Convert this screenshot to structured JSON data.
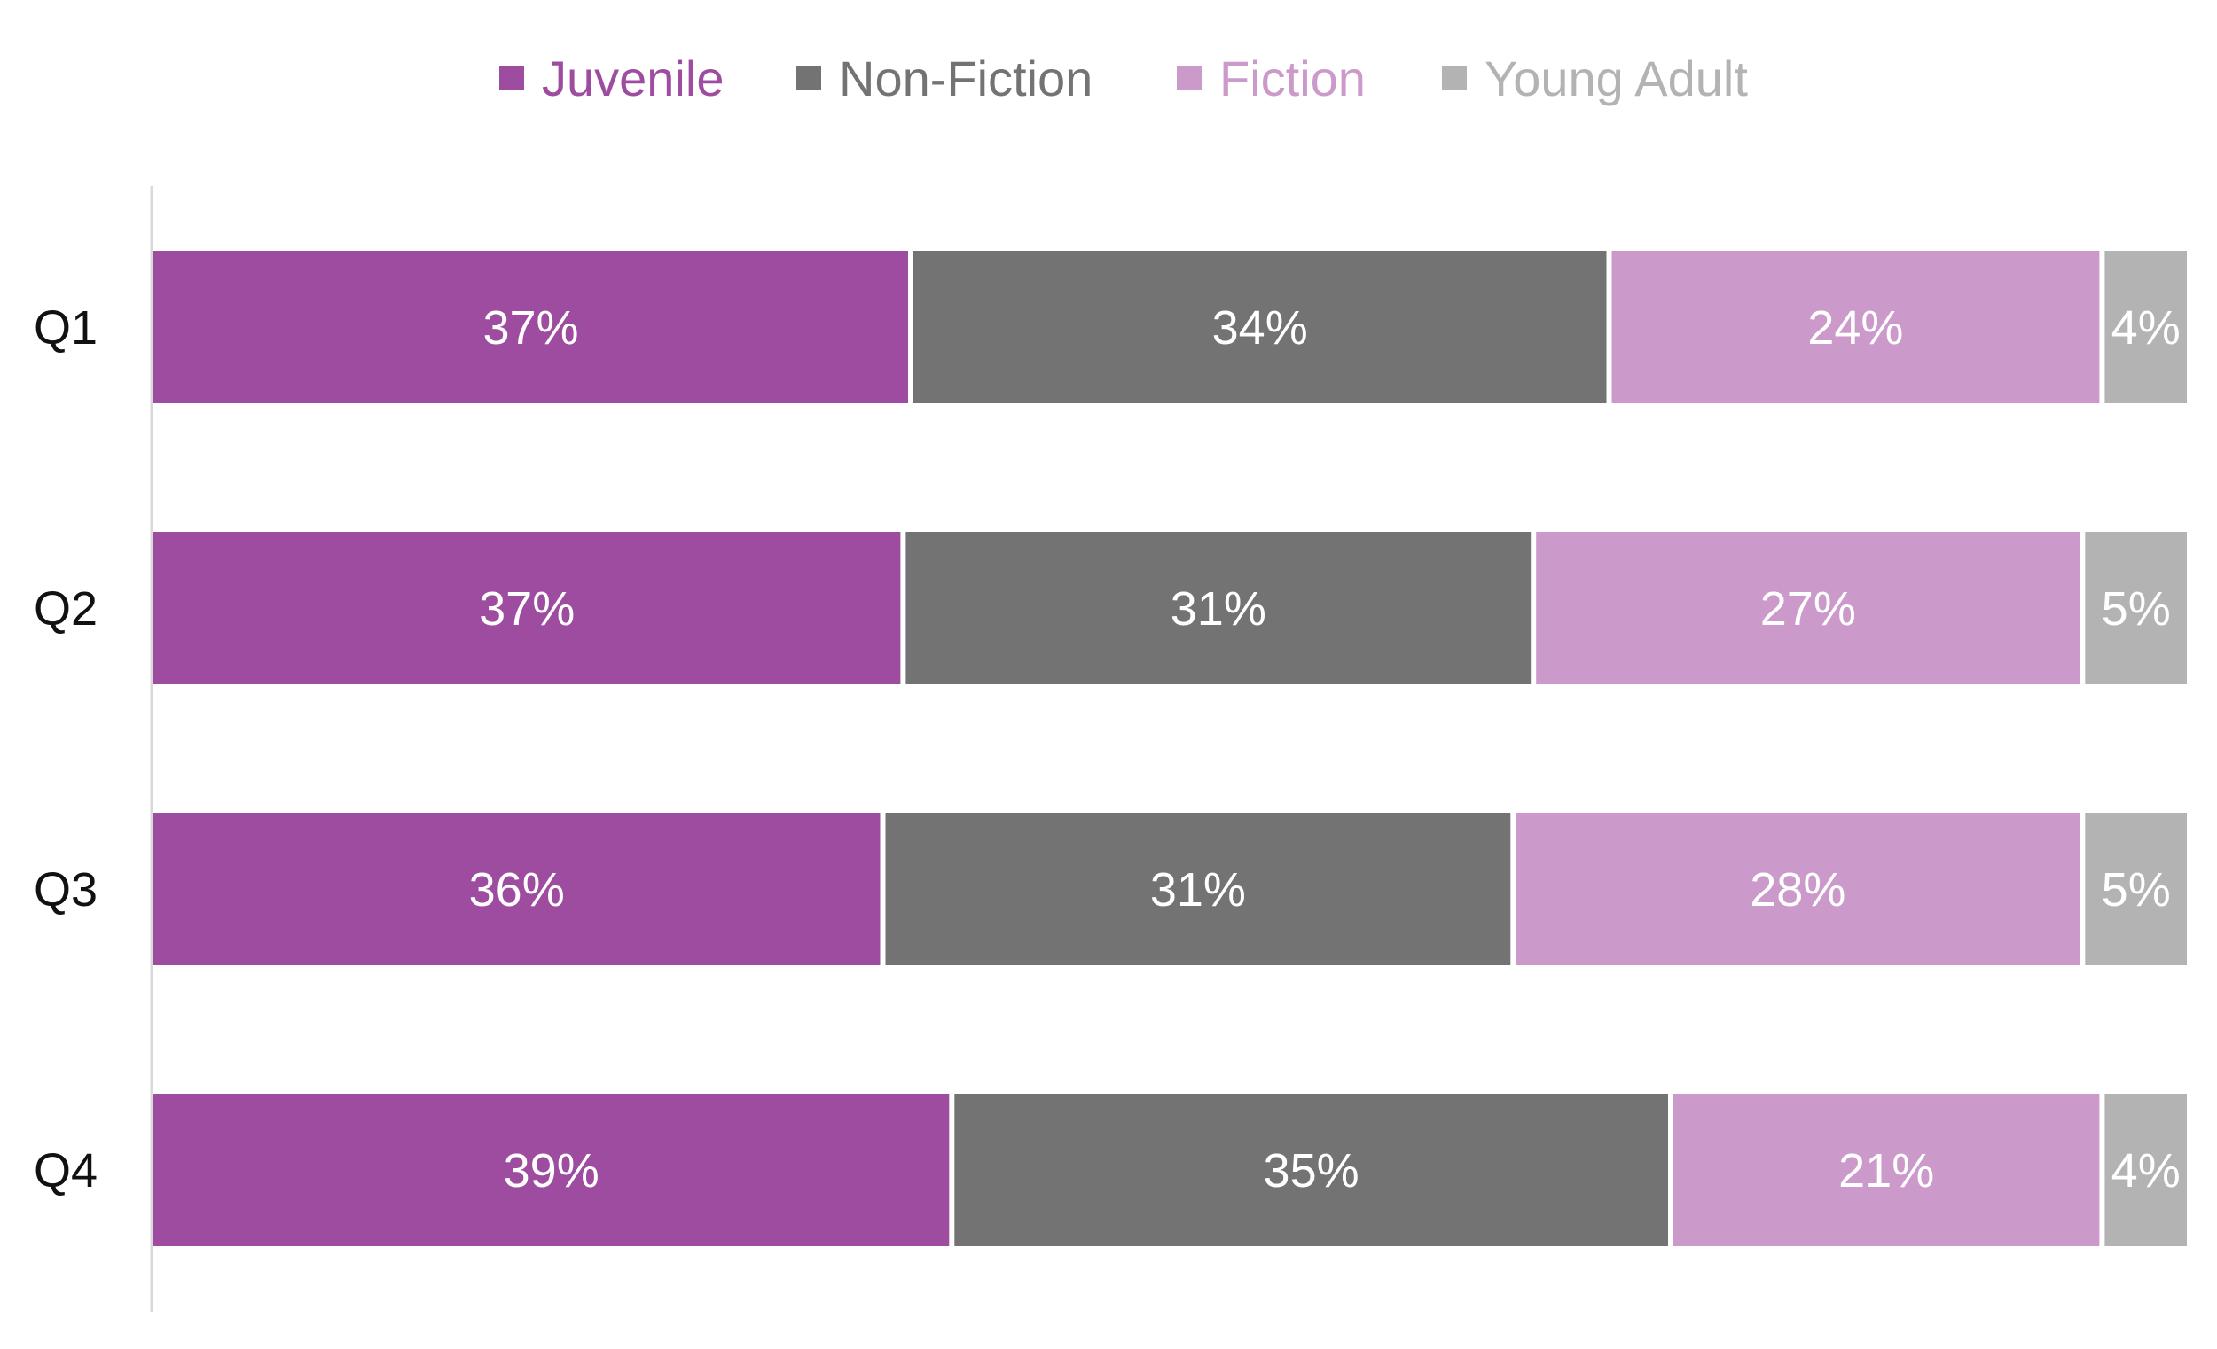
{
  "chart_data": {
    "type": "bar",
    "orientation": "horizontal",
    "stacked": "percent",
    "title": "",
    "xlabel": "",
    "ylabel": "",
    "categories": [
      "Q1",
      "Q2",
      "Q3",
      "Q4"
    ],
    "series": [
      {
        "name": "Juvenile",
        "color": "#9e4ca0",
        "values": [
          37,
          37,
          36,
          39
        ],
        "labels": [
          "37%",
          "37%",
          "36%",
          "39%"
        ]
      },
      {
        "name": "Non-Fiction",
        "color": "#737373",
        "values": [
          34,
          31,
          31,
          35
        ],
        "labels": [
          "34%",
          "31%",
          "31%",
          "35%"
        ]
      },
      {
        "name": "Fiction",
        "color": "#cb9aca",
        "values": [
          24,
          27,
          28,
          21
        ],
        "labels": [
          "24%",
          "27%",
          "28%",
          "21%"
        ]
      },
      {
        "name": "Young Adult",
        "color": "#b3b3b3",
        "values": [
          4,
          5,
          5,
          4
        ],
        "labels": [
          "4%",
          "5%",
          "5%",
          "4%"
        ]
      }
    ],
    "legend_position": "top",
    "grid": false,
    "axis_line_color": "#d9d9d9",
    "label_color": "#ffffff"
  }
}
